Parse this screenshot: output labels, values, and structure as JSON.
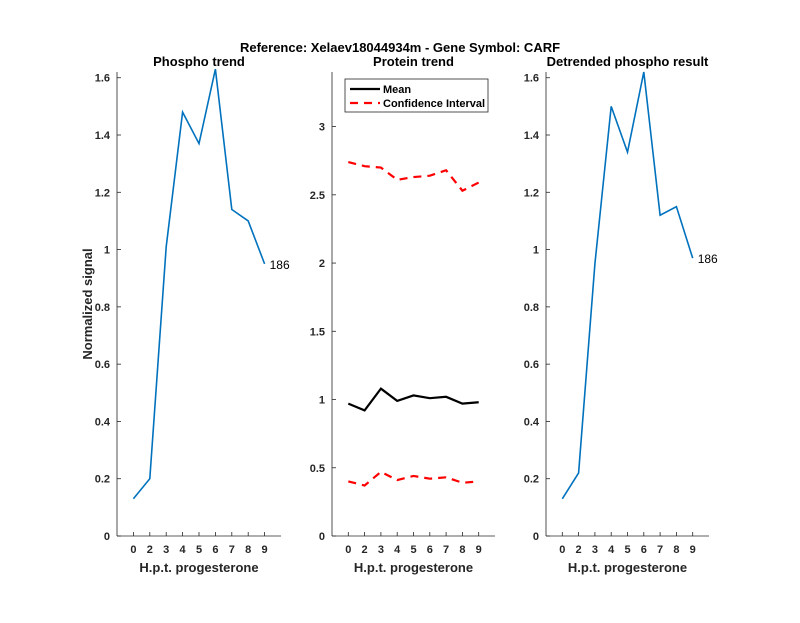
{
  "title": "Reference:  Xelaev18044934m - Gene Symbol:  CARF",
  "chart_data": [
    {
      "type": "line",
      "title": "Phospho trend",
      "xlabel": "H.p.t. progesterone",
      "ylabel": "Normalized signal",
      "categories": [
        "0",
        "2",
        "3",
        "4",
        "5",
        "6",
        "7",
        "8",
        "9"
      ],
      "ylim": [
        0,
        1.62
      ],
      "yticks": [
        "0",
        "0.2",
        "0.4",
        "0.6",
        "0.8",
        "1",
        "1.2",
        "1.4",
        "1.6"
      ],
      "series": [
        {
          "values": [
            0.13,
            0.2,
            1.01,
            1.48,
            1.37,
            1.63,
            1.14,
            1.1,
            0.95
          ],
          "color": "#0072BD",
          "style": "solid"
        }
      ],
      "annotation": "186"
    },
    {
      "type": "line",
      "title": "Protein trend",
      "xlabel": "H.p.t. progesterone",
      "categories": [
        "0",
        "2",
        "3",
        "4",
        "5",
        "6",
        "7",
        "8",
        "9"
      ],
      "ylim": [
        0,
        3.4
      ],
      "yticks": [
        "0",
        "0.5",
        "1",
        "1.5",
        "2",
        "2.5",
        "3"
      ],
      "legend": "top",
      "series": [
        {
          "name": "Mean",
          "values": [
            0.97,
            0.92,
            1.08,
            0.99,
            1.03,
            1.01,
            1.02,
            0.97,
            0.98
          ],
          "color": "#000000",
          "style": "solid"
        },
        {
          "name": "Confidence Interval",
          "values": [
            2.74,
            2.71,
            2.7,
            2.61,
            2.63,
            2.64,
            2.68,
            2.53,
            2.59
          ],
          "color": "#FF0000",
          "style": "dashed"
        },
        {
          "values": [
            0.4,
            0.37,
            0.47,
            0.41,
            0.44,
            0.42,
            0.43,
            0.39,
            0.4
          ],
          "color": "#FF0000",
          "style": "dashed"
        }
      ]
    },
    {
      "type": "line",
      "title": "Detrended phospho result",
      "xlabel": "H.p.t. progesterone",
      "categories": [
        "0",
        "2",
        "3",
        "4",
        "5",
        "6",
        "7",
        "8",
        "9"
      ],
      "ylim": [
        0,
        1.62
      ],
      "yticks": [
        "0",
        "0.2",
        "0.4",
        "0.6",
        "0.8",
        "1",
        "1.2",
        "1.4",
        "1.6"
      ],
      "series": [
        {
          "values": [
            0.13,
            0.22,
            0.95,
            1.5,
            1.34,
            1.62,
            1.12,
            1.15,
            0.97
          ],
          "color": "#0072BD",
          "style": "solid"
        }
      ],
      "annotation": "186"
    }
  ]
}
